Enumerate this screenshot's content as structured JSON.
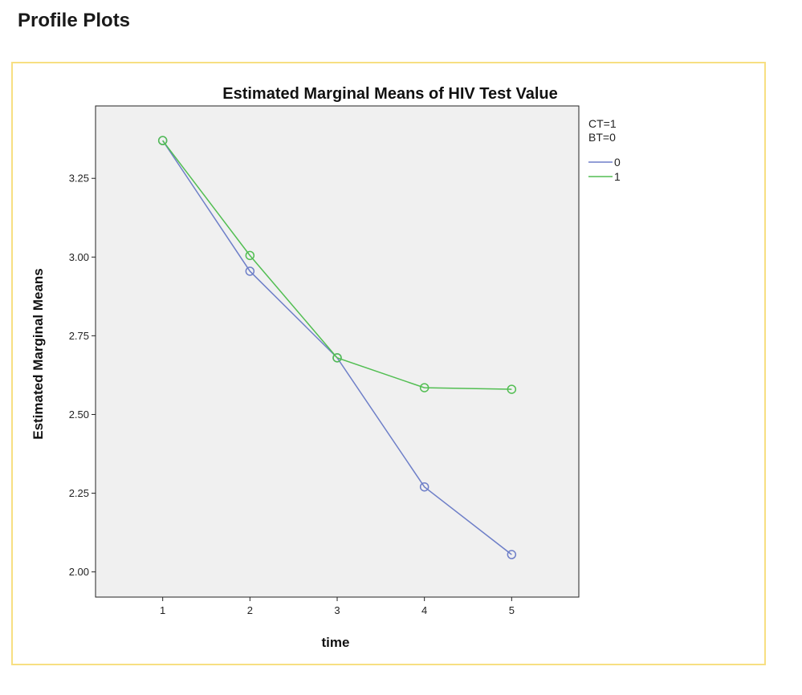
{
  "page": {
    "heading": "Profile Plots"
  },
  "chart_data": {
    "type": "line",
    "title": "Estimated Marginal Means of HIV Test Value",
    "xlabel": "time",
    "ylabel": "Estimated Marginal Means",
    "categories": [
      "1",
      "2",
      "3",
      "4",
      "5"
    ],
    "xlim": [
      0.23,
      5.77
    ],
    "ylim": [
      1.92,
      3.48
    ],
    "yticks": [
      2.0,
      2.25,
      2.5,
      2.75,
      3.0,
      3.25
    ],
    "ytick_labels": [
      "2.00",
      "2.25",
      "2.50",
      "2.75",
      "3.00",
      "3.25"
    ],
    "grid": false,
    "plot_background": "#f0f0f0",
    "legend": {
      "placement": "right",
      "header_lines": [
        "CT=1",
        "BT=0"
      ]
    },
    "series": [
      {
        "name": "0",
        "color": "#6e7fc8",
        "values": [
          3.37,
          2.955,
          2.68,
          2.27,
          2.055
        ]
      },
      {
        "name": "1",
        "color": "#52be52",
        "values": [
          3.37,
          3.005,
          2.68,
          2.585,
          2.58
        ]
      }
    ]
  }
}
